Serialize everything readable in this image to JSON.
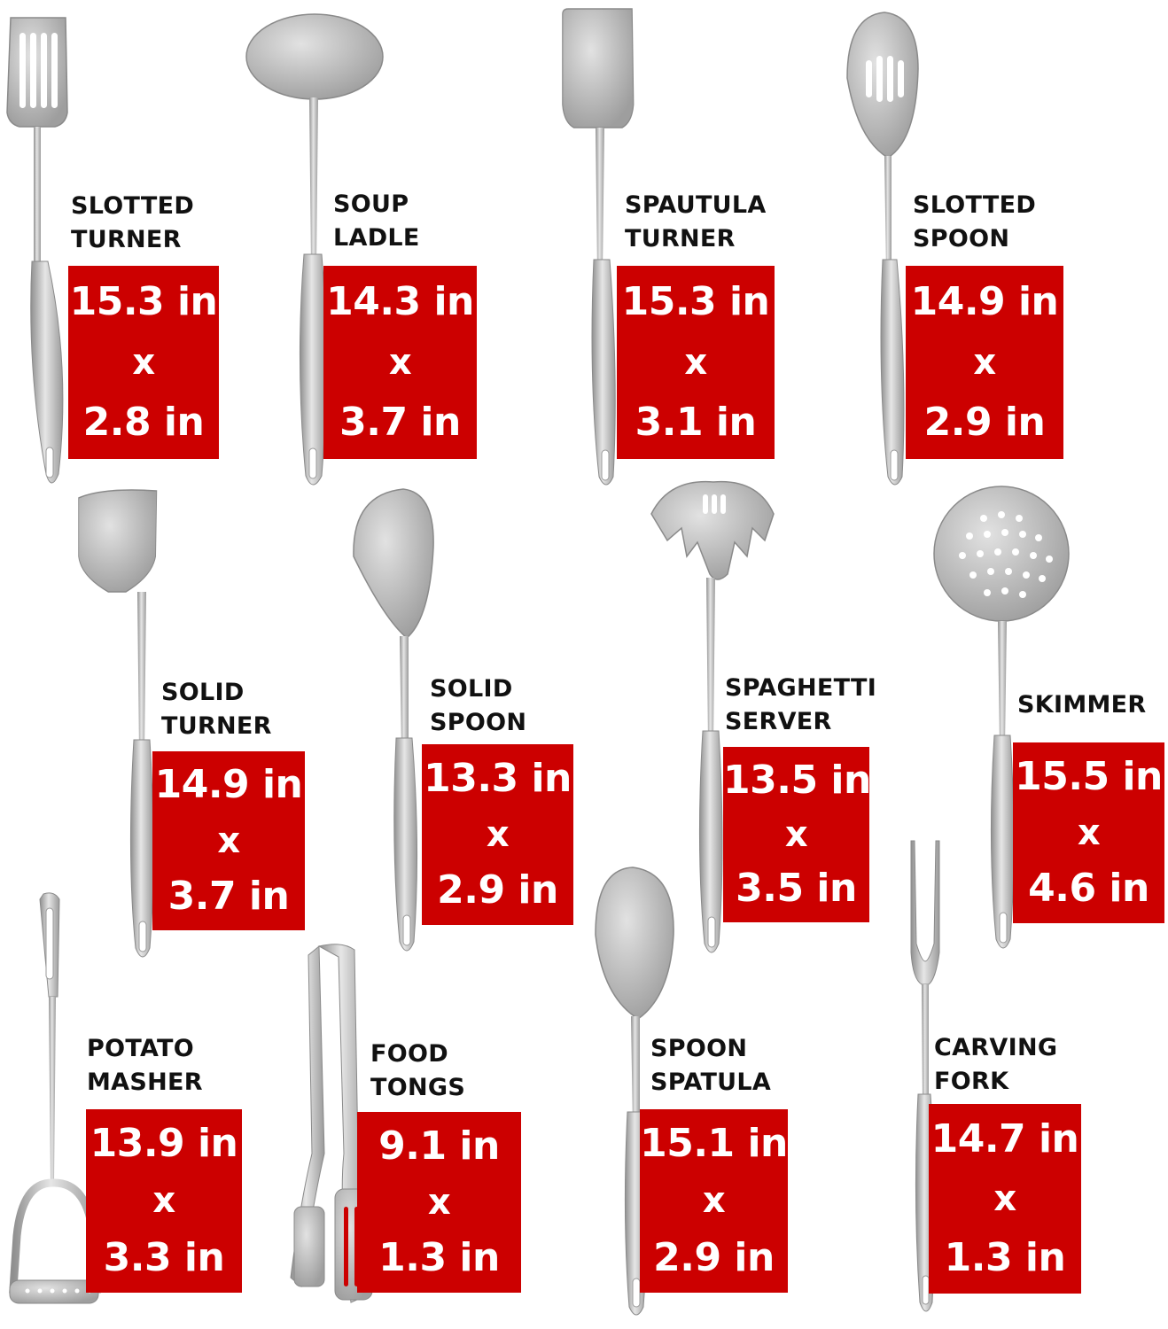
{
  "items": [
    {
      "line1": "SLOTTED",
      "line2": "TURNER",
      "length": "15.3 in",
      "x": "x",
      "width": "2.8 in",
      "icon": "slotted-turner-icon"
    },
    {
      "line1": "SOUP",
      "line2": "LADLE",
      "length": "14.3 in",
      "x": "x",
      "width": "3.7 in",
      "icon": "soup-ladle-icon"
    },
    {
      "line1": "SPAUTULA",
      "line2": "TURNER",
      "length": "15.3 in",
      "x": "x",
      "width": "3.1 in",
      "icon": "spatula-turner-icon"
    },
    {
      "line1": "SLOTTED",
      "line2": "SPOON",
      "length": "14.9 in",
      "x": "x",
      "width": "2.9 in",
      "icon": "slotted-spoon-icon"
    },
    {
      "line1": "SOLID",
      "line2": "TURNER",
      "length": "14.9 in",
      "x": "x",
      "width": "3.7 in",
      "icon": "solid-turner-icon"
    },
    {
      "line1": "SOLID",
      "line2": "SPOON",
      "length": "13.3 in",
      "x": "x",
      "width": "2.9 in",
      "icon": "solid-spoon-icon"
    },
    {
      "line1": "SPAGHETTI",
      "line2": "SERVER",
      "length": "13.5 in",
      "x": "x",
      "width": "3.5 in",
      "icon": "spaghetti-server-icon"
    },
    {
      "line1": "SKIMMER",
      "line2": "",
      "length": "15.5 in",
      "x": "x",
      "width": "4.6 in",
      "icon": "skimmer-icon"
    },
    {
      "line1": "POTATO",
      "line2": "MASHER",
      "length": "13.9 in",
      "x": "x",
      "width": "3.3 in",
      "icon": "potato-masher-icon"
    },
    {
      "line1": "FOOD",
      "line2": "TONGS",
      "length": "9.1 in",
      "x": "x",
      "width": "1.3 in",
      "icon": "food-tongs-icon"
    },
    {
      "line1": "SPOON",
      "line2": "SPATULA",
      "length": "15.1 in",
      "x": "x",
      "width": "2.9 in",
      "icon": "spoon-spatula-icon"
    },
    {
      "line1": "CARVING",
      "line2": "FORK",
      "length": "14.7 in",
      "x": "x",
      "width": "1.3 in",
      "icon": "carving-fork-icon"
    }
  ],
  "colors": {
    "badge": "#cc0000",
    "badge_text": "#ffffff",
    "label_text": "#111111",
    "steel": "#c4c4c4"
  }
}
